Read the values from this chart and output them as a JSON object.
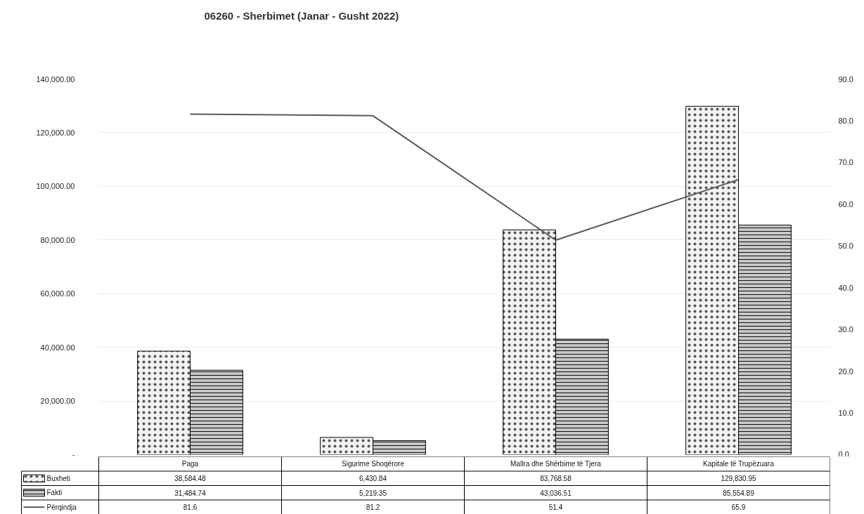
{
  "chart_data": {
    "type": "bar",
    "title": "06260 - Sherbimet (Janar - Gusht 2022)",
    "categories": [
      "Paga",
      "Sigurime Shoqërore",
      "Mallra dhe Shërbime të Tjera",
      "Kapitale të Trupëzuara"
    ],
    "series": [
      {
        "name": "Buxheti",
        "color": "#f2f2f2",
        "values": [
          38584.48,
          6430.84,
          83768.58,
          129830.95
        ],
        "value_labels": [
          "38,584.48",
          "6,430.84",
          "83,768.58",
          "129,830.95"
        ]
      },
      {
        "name": "Fakti",
        "color": "#c8c8c8",
        "values": [
          31484.74,
          5219.35,
          43036.51,
          85554.89
        ],
        "value_labels": [
          "31,484.74",
          "5,219.35",
          "43,036.51",
          "85,554.89"
        ]
      },
      {
        "name": "Përqindja",
        "type": "line",
        "axis": "y2",
        "color": "#595959",
        "values": [
          81.6,
          81.2,
          51.4,
          65.9
        ],
        "value_labels": [
          "81.6",
          "81.2",
          "51.4",
          "65.9"
        ]
      }
    ],
    "ylim": [
      0,
      140000
    ],
    "yticks": [
      {
        "value": 0,
        "label": "-"
      },
      {
        "value": 20000,
        "label": "20,000.00"
      },
      {
        "value": 40000,
        "label": "40,000.00"
      },
      {
        "value": 60000,
        "label": "60,000.00"
      },
      {
        "value": 80000,
        "label": "80,000.00"
      },
      {
        "value": 100000,
        "label": "100,000.00"
      },
      {
        "value": 120000,
        "label": "120,000.00"
      },
      {
        "value": 140000,
        "label": "140,000.00"
      }
    ],
    "y2lim": [
      0,
      90
    ],
    "y2ticks": [
      {
        "value": 0,
        "label": "0.0"
      },
      {
        "value": 10,
        "label": "10.0"
      },
      {
        "value": 20,
        "label": "20.0"
      },
      {
        "value": 30,
        "label": "30.0"
      },
      {
        "value": 40,
        "label": "40.0"
      },
      {
        "value": 50,
        "label": "50.0"
      },
      {
        "value": 60,
        "label": "60.0"
      },
      {
        "value": 70,
        "label": "70.0"
      },
      {
        "value": 80,
        "label": "80.0"
      },
      {
        "value": 90,
        "label": "90.0"
      }
    ],
    "grid": "y",
    "legend": "bottom"
  }
}
